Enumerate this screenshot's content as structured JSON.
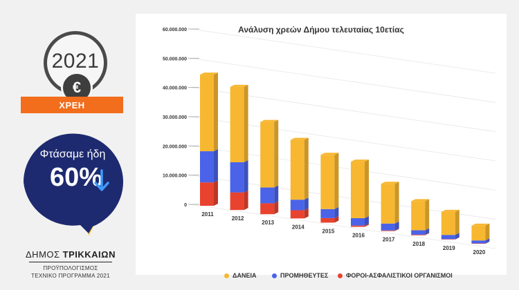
{
  "sidebar": {
    "year": "2021",
    "currency_symbol": "€",
    "debt_label": "ΧΡΕΗ",
    "bubble_line1": "Φτάσαμε ήδη",
    "bubble_value": "60%",
    "municipality_prefix": "ΔΗΜΟΣ ",
    "municipality_name": "ΤΡΙΚΚΑΙΩΝ",
    "subtitle1": "ΠΡΟΫΠΟΛΟΓΙΣΜΟΣ",
    "subtitle2": "ΤΕΧΝΙΚΟ ΠΡΟΓΡΑΜΜΑ 2021"
  },
  "colors": {
    "loans": "#f7b731",
    "suppliers": "#4a63e8",
    "taxes": "#e8432e",
    "orange": "#f26d1c",
    "navy": "#1d2a6f",
    "yellow": "#fbc02d"
  },
  "chart_data": {
    "type": "bar",
    "stacked": true,
    "title": "Ανάλυση χρεών Δήμου τελευταίας 10ετίας",
    "categories": [
      "2011",
      "2012",
      "2013",
      "2014",
      "2015",
      "2016",
      "2017",
      "2018",
      "2019",
      "2020"
    ],
    "series": [
      {
        "name": "ΦΟΡΟΙ-ΑΣΦΑΛΙΣΤΙΚΟΙ ΟΡΓΑΝΙΣΜΟΙ",
        "color": "#e8432e",
        "values": [
          9000000,
          7000000,
          4500000,
          3500000,
          2000000,
          600000,
          300000,
          300000,
          200000,
          200000
        ]
      },
      {
        "name": "ΠΡΟΜΗΘΕΥΤΕΣ",
        "color": "#4a63e8",
        "values": [
          12000000,
          12000000,
          6500000,
          4500000,
          4000000,
          3400000,
          3300000,
          2200000,
          2200000,
          1600000
        ]
      },
      {
        "name": "ΔΑΝΕΙΑ",
        "color": "#f7b731",
        "values": [
          29500000,
          30000000,
          27000000,
          25500000,
          24000000,
          26000000,
          19000000,
          14500000,
          12000000,
          8000000
        ]
      }
    ],
    "ylim": [
      0,
      60000000
    ],
    "yticks": [
      0,
      10000000,
      20000000,
      30000000,
      40000000,
      50000000,
      60000000
    ],
    "ytick_labels": [
      "0",
      "10.000.000",
      "20.000.000",
      "30.000.000",
      "40.000.000",
      "50.000.000",
      "60.000.000"
    ],
    "legend_labels": [
      "ΔΑΝΕΙΑ",
      "ΠΡΟΜΗΘΕΥΤΕΣ",
      "ΦΟΡΟΙ-ΑΣΦΑΛΙΣΤΙΚΟΙ ΟΡΓΑΝΙΣΜΟΙ"
    ],
    "legend_position": "bottom",
    "grid": true,
    "style": "3d-perspective"
  }
}
